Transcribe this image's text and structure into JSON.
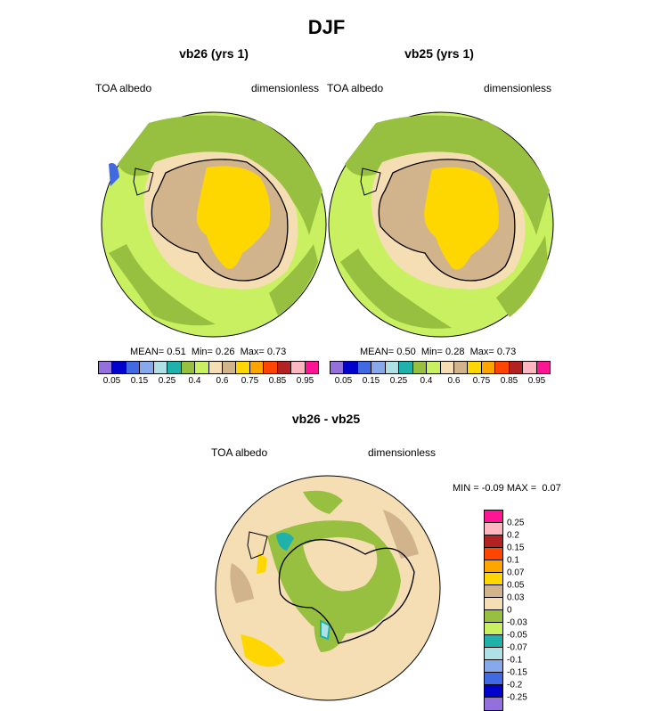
{
  "season": "DJF",
  "panels": [
    {
      "title": "vb26 (yrs 1)",
      "variable": "TOA albedo",
      "units": "dimensionless",
      "stats": {
        "mean_label": "MEAN=",
        "mean": "0.51",
        "min_label": "Min=",
        "min": "0.26",
        "max_label": "Max=",
        "max": "0.73"
      }
    },
    {
      "title": "vb25 (yrs 1)",
      "variable": "TOA albedo",
      "units": "dimensionless",
      "stats": {
        "mean_label": "MEAN=",
        "mean": "0.50",
        "min_label": "Min=",
        "min": "0.28",
        "max_label": "Max=",
        "max": "0.73"
      }
    }
  ],
  "abs_colorbar": {
    "colors": [
      "#9370DB",
      "#0000CD",
      "#4169E1",
      "#87A9EB",
      "#AFE0E6",
      "#20B2AA",
      "#98C040",
      "#C8F060",
      "#F5DEB3",
      "#D2B48C",
      "#FFD700",
      "#FFA500",
      "#FF4500",
      "#B22222",
      "#FFB6C1",
      "#FF1493"
    ],
    "ticks": [
      "0.05",
      "0.15",
      "0.25",
      "0.4",
      "0.6",
      "0.75",
      "0.85",
      "0.95"
    ]
  },
  "diff_panel": {
    "title": "vb26 - vb25",
    "variable": "TOA albedo",
    "units": "dimensionless",
    "min_label": "MIN =",
    "min": "-0.09",
    "max_label": "MAX =",
    "max": "0.07"
  },
  "diff_colorbar": {
    "colors": [
      "#FF1493",
      "#FFB6C1",
      "#B22222",
      "#FF4500",
      "#FFA500",
      "#FFD700",
      "#D2B48C",
      "#F5DEB3",
      "#98C040",
      "#C8F060",
      "#20B2AA",
      "#AFE0E6",
      "#87A9EB",
      "#4169E1",
      "#0000CD",
      "#9370DB"
    ],
    "ticks": [
      "0.25",
      "0.2",
      "0.15",
      "0.1",
      "0.07",
      "0.05",
      "0.03",
      "0",
      "-0.03",
      "-0.05",
      "-0.07",
      "-0.1",
      "-0.15",
      "-0.2",
      "-0.25"
    ]
  },
  "map_colors": {
    "ocean_green": "#C8F060",
    "ice_green": "#98C040",
    "tan": "#D2B48C",
    "wheat": "#F5DEB3",
    "gold": "#FFD700",
    "teal": "#20B2AA",
    "light_blue": "#AFE0E6"
  }
}
